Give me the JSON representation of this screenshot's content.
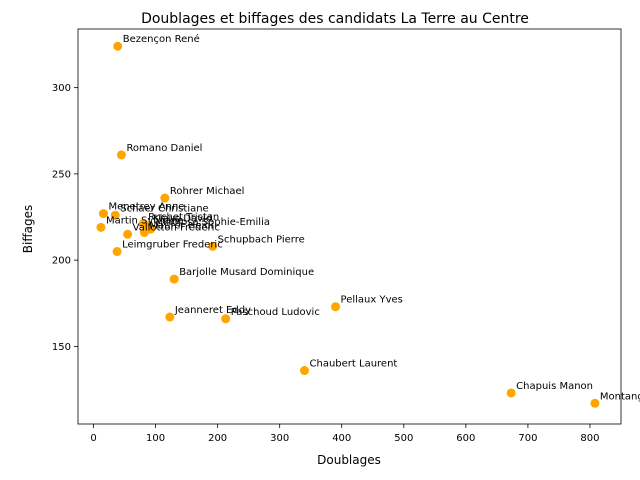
{
  "chart_data": {
    "type": "scatter",
    "title": "Doublages et biffages des candidats La Terre au Centre",
    "xlabel": "Doublages",
    "ylabel": "Biffages",
    "xlim": [
      -25,
      850
    ],
    "ylim": [
      105,
      334
    ],
    "xticks": [
      0,
      100,
      200,
      300,
      400,
      500,
      600,
      700,
      800
    ],
    "yticks": [
      150,
      200,
      250,
      300
    ],
    "marker_color": "#ffa500",
    "grid": false,
    "points": [
      {
        "label": "Bezençon René",
        "x": 39,
        "y": 324
      },
      {
        "label": "Romano Daniel",
        "x": 45,
        "y": 261
      },
      {
        "label": "Rohrer Michael",
        "x": 115,
        "y": 236
      },
      {
        "label": "Menetrey Anne",
        "x": 16,
        "y": 227
      },
      {
        "label": "Schaer Christiane",
        "x": 35,
        "y": 226
      },
      {
        "label": "Ruchet Tristan",
        "x": 80,
        "y": 221
      },
      {
        "label": "Martin Sylviane",
        "x": 12,
        "y": 219
      },
      {
        "label": "Hinojosa Sophie-Emilia",
        "x": 92,
        "y": 218
      },
      {
        "label": "Klaus David",
        "x": 88,
        "y": 220
      },
      {
        "label": "Vallotton Frédéric",
        "x": 55,
        "y": 215
      },
      {
        "label": "Maurer Heidi",
        "x": 82,
        "y": 216
      },
      {
        "label": "Schupbach Pierre",
        "x": 192,
        "y": 208
      },
      {
        "label": "Leimgruber Frederic",
        "x": 38,
        "y": 205
      },
      {
        "label": "Barjolle Musard Dominique",
        "x": 130,
        "y": 189
      },
      {
        "label": "Pellaux Yves",
        "x": 390,
        "y": 173
      },
      {
        "label": "Jeanneret Eddy",
        "x": 123,
        "y": 167
      },
      {
        "label": "Paschoud Ludovic",
        "x": 213,
        "y": 166
      },
      {
        "label": "Chaubert Laurent",
        "x": 340,
        "y": 136
      },
      {
        "label": "Chapuis Manon",
        "x": 673,
        "y": 123
      },
      {
        "label": "Montangero Stéphane",
        "x": 808,
        "y": 117
      }
    ]
  }
}
